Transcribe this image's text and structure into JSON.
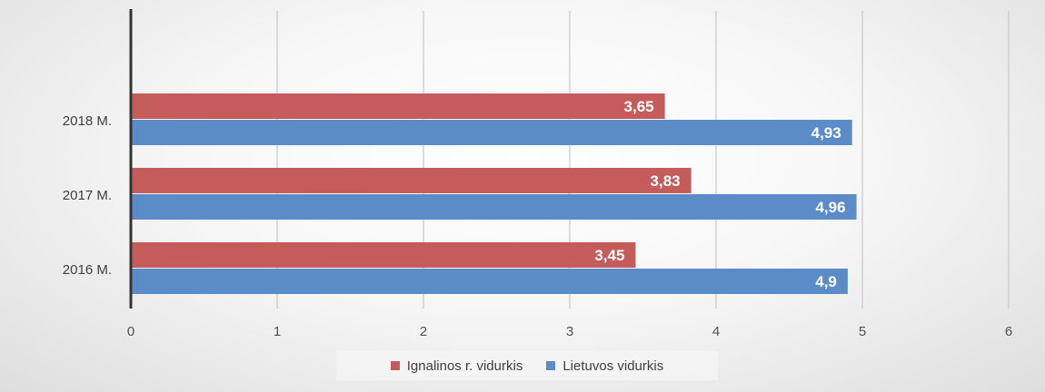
{
  "chart_data": {
    "type": "bar",
    "orientation": "horizontal",
    "categories": [
      "2018 M.",
      "2017 M.",
      "2016 M."
    ],
    "series": [
      {
        "name": "Ignalinos r. vidurkis",
        "color": "#c45c5c",
        "values": [
          3.65,
          3.83,
          3.45
        ],
        "labels": [
          "3,65",
          "3,83",
          "3,45"
        ]
      },
      {
        "name": "Lietuvos vidurkis",
        "color": "#5b8cc8",
        "values": [
          4.93,
          4.96,
          4.9
        ],
        "labels": [
          "4,93",
          "4,96",
          "4,9"
        ]
      }
    ],
    "xlim": [
      0,
      6
    ],
    "xticks": [
      "0",
      "1",
      "2",
      "3",
      "4",
      "5",
      "6"
    ],
    "grid": true,
    "legend_position": "bottom"
  }
}
